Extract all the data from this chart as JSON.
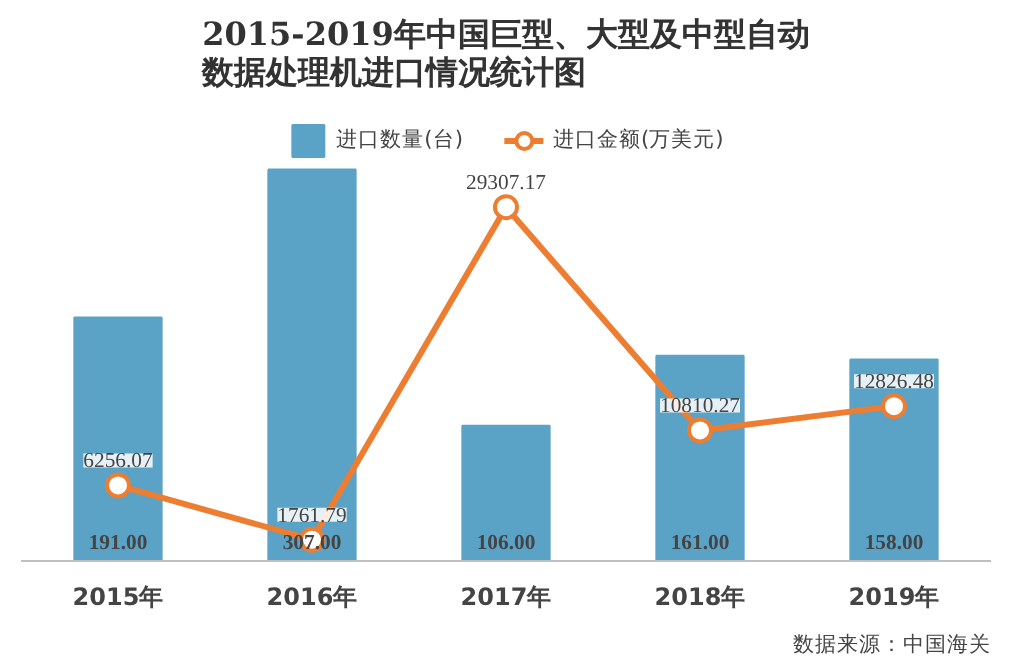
{
  "chart_data": {
    "type": "bar",
    "title": "2015-2019年中国巨型、大型及中型自动数据处理机进口情况统计图",
    "categories": [
      "2015年",
      "2016年",
      "2017年",
      "2018年",
      "2019年"
    ],
    "series": [
      {
        "name": "进口数量(台)",
        "color": "#5ba3c6",
        "values": [
          191,
          307,
          106,
          161,
          158
        ],
        "value_labels": [
          "191.00",
          "307.00",
          "106.00",
          "161.00",
          "158.00"
        ]
      },
      {
        "name": "进口金额(万美元)",
        "type": "line",
        "axis": "y2",
        "color": "#ed7d31",
        "values": [
          6256.07,
          1761.79,
          29307.17,
          10810.27,
          12826.48
        ],
        "value_labels": [
          "6256.07",
          "1761.79",
          "29307.17",
          "10810.27",
          "12826.48"
        ]
      }
    ],
    "tick_labels": "x",
    "legend": "top",
    "marker": "circle",
    "annotations": [
      "数据来源：中国海关"
    ]
  }
}
